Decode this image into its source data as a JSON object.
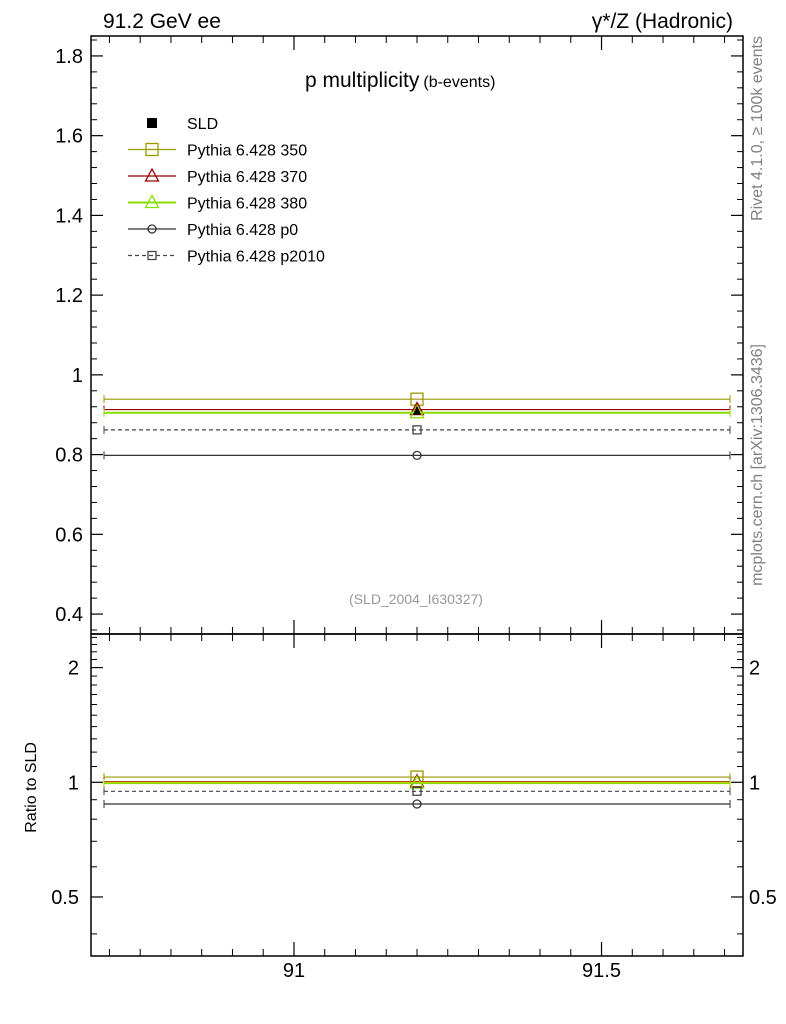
{
  "header": {
    "left": "91.2 GeV ee",
    "right": "γ*/Z (Hadronic)"
  },
  "side_labels": {
    "rivet": "Rivet 4.1.0, ≥ 100k events",
    "mcplots": "mcplots.cern.ch [arXiv:1306.3436]"
  },
  "chart_data": {
    "type": "scatter",
    "title": "p multiplicity",
    "title_suffix": "(b-events)",
    "watermark": "(SLD_2004_I630327)",
    "xlabel": "",
    "ylabel": "",
    "ratio_ylabel": "Ratio to SLD",
    "xlim": [
      90.67,
      91.73
    ],
    "ylim": [
      0.35,
      1.85
    ],
    "ratio_ylim": [
      0.35,
      2.45
    ],
    "x_ticks": [
      {
        "value": 91.0,
        "label": "91"
      },
      {
        "value": 91.5,
        "label": "91.5"
      }
    ],
    "y_ticks": [
      {
        "value": 0.4,
        "label": "0.4"
      },
      {
        "value": 0.6,
        "label": "0.6"
      },
      {
        "value": 0.8,
        "label": "0.8"
      },
      {
        "value": 1.0,
        "label": "1"
      },
      {
        "value": 1.2,
        "label": "1.2"
      },
      {
        "value": 1.4,
        "label": "1.4"
      },
      {
        "value": 1.6,
        "label": "1.6"
      },
      {
        "value": 1.8,
        "label": "1.8"
      }
    ],
    "ratio_ticks": [
      {
        "value": 0.5,
        "label": "0.5"
      },
      {
        "value": 1.0,
        "label": "1"
      },
      {
        "value": 2.0,
        "label": "2"
      }
    ],
    "x_bin": [
      90.67,
      91.73
    ],
    "x_center": 91.2,
    "series": [
      {
        "name": "SLD",
        "marker": "filled-square",
        "color": "#000000",
        "dashed": false,
        "value": 0.91,
        "ratio": 1.0
      },
      {
        "name": "Pythia 6.428 350",
        "marker": "open-square",
        "color": "#999900",
        "dashed": false,
        "value": 0.939,
        "ratio": 1.032
      },
      {
        "name": "Pythia 6.428 370",
        "marker": "open-triangle",
        "color": "#990000",
        "dashed": false,
        "value": 0.913,
        "ratio": 1.003
      },
      {
        "name": "Pythia 6.428 380",
        "marker": "open-triangle",
        "color": "#88dd00",
        "dashed": false,
        "value": 0.905,
        "ratio": 0.995
      },
      {
        "name": "Pythia 6.428 p0",
        "marker": "open-circle",
        "color": "#333333",
        "dashed": false,
        "value": 0.798,
        "ratio": 0.877
      },
      {
        "name": "Pythia 6.428 p2010",
        "marker": "open-square-small",
        "color": "#444444",
        "dashed": true,
        "value": 0.862,
        "ratio": 0.947
      }
    ]
  }
}
